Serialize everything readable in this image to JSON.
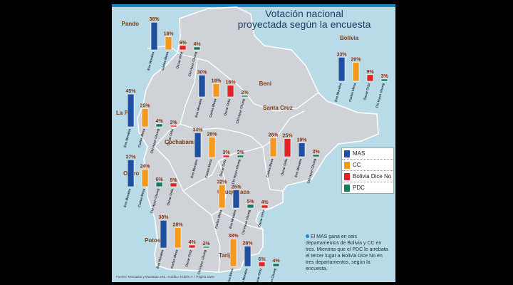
{
  "title_line1": "Votación nacional",
  "title_line2": "proyectada según la encuesta",
  "colors": {
    "MAS": "#1f4fa0",
    "CC": "#f39a1e",
    "BDN": "#e32227",
    "PDC": "#137a5c"
  },
  "legend": [
    {
      "key": "MAS",
      "label": "MAS",
      "color": "#1f4fa0"
    },
    {
      "key": "CC",
      "label": "CC",
      "color": "#f39a1e"
    },
    {
      "key": "BDN",
      "label": "Bolivia Dice No",
      "color": "#e32227"
    },
    {
      "key": "PDC",
      "label": "PDC",
      "color": "#137a5c"
    }
  ],
  "note": "El MAS gana en seis departamentos de Bolivia y CC en tres. Mientras que el PDC le arrebata el tercer lugar a Bolivia Dice No en tres departamentos, según la encuesta.",
  "source": "Fuente: Mercados y Muestras SRL / Gráfico: Rubén A. / Página Siete",
  "chart_data": [
    {
      "type": "bar",
      "title": "Pando",
      "categories": [
        "Evo Morales",
        "Carlos Mesa",
        "Óscar Ortiz",
        "Chi Hyun Chung"
      ],
      "series": [
        "MAS",
        "CC",
        "BDN",
        "PDC"
      ],
      "values": [
        38,
        18,
        6,
        4
      ],
      "labels": [
        "38%",
        "18%",
        "6%",
        "4%"
      ]
    },
    {
      "type": "bar",
      "title": "Beni",
      "categories": [
        "Evo Morales",
        "Carlos Mesa",
        "Óscar Ortiz",
        "Chi Hyun Chung"
      ],
      "series": [
        "MAS",
        "CC",
        "BDN",
        "PDC"
      ],
      "values": [
        30,
        18,
        16,
        2
      ],
      "labels": [
        "30%",
        "18%",
        "16%",
        "2%"
      ]
    },
    {
      "type": "bar",
      "title": "Bolivia",
      "categories": [
        "Evo Morales",
        "Carlos Mesa",
        "Óscar Ortiz",
        "Chi Hyun Chung"
      ],
      "series": [
        "MAS",
        "CC",
        "BDN",
        "PDC"
      ],
      "values": [
        33,
        26,
        9,
        3
      ],
      "labels": [
        "33%",
        "26%",
        "9%",
        "3%"
      ]
    },
    {
      "type": "bar",
      "title": "La Paz",
      "categories": [
        "Evo Morales",
        "Carlos Mesa",
        "Chi Hyun Chung",
        "Óscar Ortiz"
      ],
      "series": [
        "MAS",
        "CC",
        "PDC",
        "BDN"
      ],
      "values": [
        45,
        25,
        4,
        2
      ],
      "labels": [
        "45%",
        "25%",
        "4%",
        "2%"
      ]
    },
    {
      "type": "bar",
      "title": "Cochabamba",
      "categories": [
        "Evo Morales",
        "Carlos Mesa",
        "Óscar Ortiz",
        "Chi Hyun Chung"
      ],
      "series": [
        "MAS",
        "CC",
        "BDN",
        "PDC"
      ],
      "values": [
        34,
        28,
        3,
        3
      ],
      "labels": [
        "34%",
        "28%",
        "3%",
        "3%"
      ]
    },
    {
      "type": "bar",
      "title": "Santa Cruz",
      "categories": [
        "Carlos Mesa",
        "Óscar Ortiz",
        "Evo Morales",
        "Chi Hyun Chung"
      ],
      "series": [
        "CC",
        "BDN",
        "MAS",
        "PDC"
      ],
      "values": [
        26,
        25,
        19,
        3
      ],
      "labels": [
        "26%",
        "25%",
        "19%",
        "3%"
      ]
    },
    {
      "type": "bar",
      "title": "Oruro",
      "categories": [
        "Evo Morales",
        "Carlos Mesa",
        "Chi Hyun Chung",
        "Óscar Ortiz"
      ],
      "series": [
        "MAS",
        "CC",
        "PDC",
        "BDN"
      ],
      "values": [
        37,
        24,
        6,
        5
      ],
      "labels": [
        "37%",
        "24%",
        "6%",
        "5%"
      ]
    },
    {
      "type": "bar",
      "title": "Chuquisaca",
      "categories": [
        "Carlos Mesa",
        "Evo Morales",
        "Chi Hyun Chung",
        "Óscar Ortiz"
      ],
      "series": [
        "CC",
        "MAS",
        "PDC",
        "BDN"
      ],
      "values": [
        32,
        25,
        5,
        4
      ],
      "labels": [
        "32%",
        "25%",
        "5%",
        "4%"
      ]
    },
    {
      "type": "bar",
      "title": "Potosí",
      "categories": [
        "Evo Morales",
        "Carlos Mesa",
        "Óscar Ortiz",
        "Chi Hyun Chung"
      ],
      "series": [
        "MAS",
        "CC",
        "BDN",
        "PDC"
      ],
      "values": [
        38,
        28,
        4,
        2
      ],
      "labels": [
        "38%",
        "28%",
        "4%",
        "2%"
      ]
    },
    {
      "type": "bar",
      "title": "Tarija",
      "categories": [
        "Carlos Mesa",
        "Evo Morales",
        "Óscar Ortiz",
        "Chi Hyun Chung"
      ],
      "series": [
        "CC",
        "MAS",
        "BDN",
        "PDC"
      ],
      "values": [
        38,
        28,
        6,
        4
      ],
      "labels": [
        "38%",
        "28%",
        "6%",
        "4%"
      ]
    }
  ]
}
